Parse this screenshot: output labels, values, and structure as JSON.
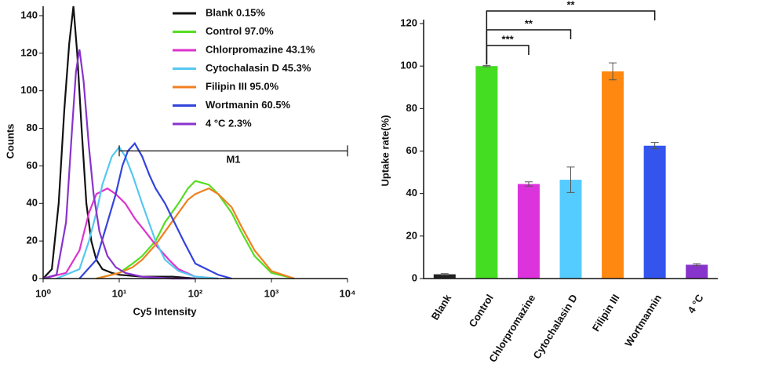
{
  "chart_data": [
    {
      "type": "line",
      "log_x": true,
      "xlabel": "Cy5 Intensity",
      "ylabel": "Counts",
      "xlim": [
        1,
        10000
      ],
      "ylim": [
        0,
        145
      ],
      "xticks": [
        {
          "value": 1,
          "label": "10⁰"
        },
        {
          "value": 10,
          "label": "10¹"
        },
        {
          "value": 100,
          "label": "10²"
        },
        {
          "value": 1000,
          "label": "10³"
        },
        {
          "value": 10000,
          "label": "10⁴"
        }
      ],
      "yticks": [
        0,
        20,
        40,
        60,
        80,
        100,
        120,
        140
      ],
      "gate": {
        "label": "M1",
        "range": [
          10,
          10000
        ],
        "level": 68
      },
      "series": [
        {
          "name": "Blank 0.15%",
          "color": "#111111",
          "x": [
            1,
            1.3,
            1.6,
            1.9,
            2.2,
            2.5,
            2.8,
            3.2,
            3.7,
            4.3,
            5,
            6,
            8,
            10,
            20,
            50,
            100
          ],
          "values": [
            0,
            5,
            40,
            90,
            125,
            145,
            120,
            80,
            40,
            20,
            10,
            5,
            3,
            2,
            1,
            1,
            0
          ]
        },
        {
          "name": "Control  97.0%",
          "color": "#55dd22",
          "x": [
            5,
            10,
            15,
            20,
            30,
            40,
            60,
            80,
            100,
            150,
            200,
            300,
            400,
            600,
            1000,
            2000
          ],
          "values": [
            0,
            3,
            8,
            12,
            20,
            30,
            40,
            48,
            52,
            50,
            45,
            35,
            25,
            12,
            3,
            0
          ]
        },
        {
          "name": "Chlorpromazine  43.1%",
          "color": "#dd33cc",
          "x": [
            1,
            2,
            3,
            4,
            5,
            7,
            9,
            12,
            16,
            22,
            30,
            45,
            60,
            100,
            200
          ],
          "values": [
            0,
            3,
            15,
            35,
            45,
            48,
            45,
            40,
            32,
            25,
            18,
            10,
            5,
            1,
            0
          ]
        },
        {
          "name": "Cytochalasin D 45.3%",
          "color": "#55c8f0",
          "x": [
            1.5,
            3,
            4,
            5,
            6,
            8,
            10,
            12,
            15,
            20,
            30,
            40,
            60,
            100,
            200
          ],
          "values": [
            0,
            5,
            20,
            35,
            50,
            65,
            70,
            65,
            55,
            40,
            20,
            10,
            4,
            1,
            0
          ]
        },
        {
          "name": "Filipin III 95.0%",
          "color": "#f08020",
          "x": [
            5,
            10,
            15,
            20,
            30,
            40,
            60,
            80,
            100,
            150,
            200,
            300,
            400,
            600,
            1000,
            2000
          ],
          "values": [
            0,
            3,
            6,
            10,
            18,
            25,
            35,
            42,
            45,
            48,
            45,
            38,
            28,
            15,
            4,
            0
          ]
        },
        {
          "name": "Wortmanin 60.5%",
          "color": "#3344dd",
          "x": [
            3,
            5,
            7,
            9,
            11,
            13,
            16,
            20,
            25,
            30,
            40,
            50,
            70,
            100,
            200,
            300
          ],
          "values": [
            0,
            10,
            30,
            45,
            60,
            68,
            72,
            65,
            55,
            48,
            40,
            32,
            20,
            8,
            2,
            0
          ]
        },
        {
          "name": "4 °C 2.3%",
          "color": "#8833cc",
          "x": [
            1,
            1.5,
            2,
            2.4,
            2.7,
            3,
            3.4,
            4,
            4.6,
            5.5,
            7,
            9,
            12,
            20,
            50,
            100
          ],
          "values": [
            0,
            2,
            30,
            80,
            110,
            122,
            105,
            70,
            45,
            25,
            12,
            6,
            3,
            1,
            0,
            0
          ]
        }
      ]
    },
    {
      "type": "bar",
      "ylabel": "Uptake rate(%)",
      "ylim": [
        0,
        120
      ],
      "yticks": [
        0,
        20,
        40,
        60,
        80,
        100,
        120
      ],
      "categories": [
        "Blank",
        "Control",
        "Chlorpromazine",
        "Cytochalasin D",
        "Filipin III",
        "Wortmannin",
        "4 °C"
      ],
      "values": [
        2,
        100,
        44.5,
        46.5,
        97.5,
        62.5,
        6.5
      ],
      "errors": [
        0.3,
        0.3,
        1,
        6,
        4,
        1.5,
        0.5
      ],
      "colors": [
        "#222222",
        "#44dd22",
        "#dd33dd",
        "#55ccff",
        "#ff8811",
        "#3355ee",
        "#8833cc"
      ],
      "annotations": [
        {
          "text": "***",
          "from": "Control",
          "to": "Chlorpromazine"
        },
        {
          "text": "**",
          "from": "Control",
          "to": "Cytochalasin D"
        },
        {
          "text": "**",
          "from": "Control",
          "to": "Wortmannin"
        }
      ]
    }
  ]
}
